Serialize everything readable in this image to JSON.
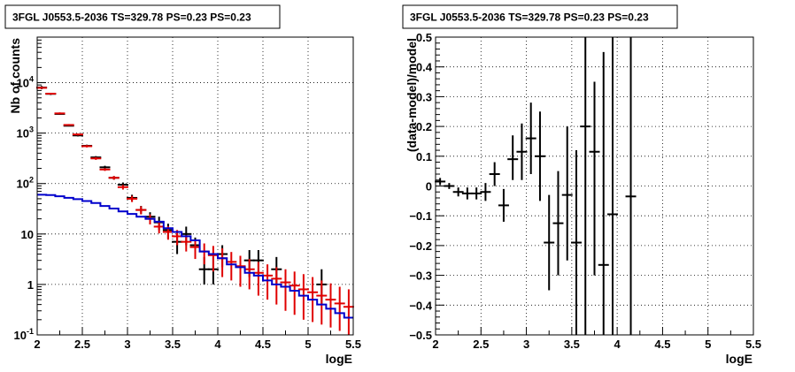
{
  "chart_data": [
    {
      "type": "scatter",
      "title": "3FGL J0553.5-2036 TS=329.78 PS=0.23 PS=0.23",
      "xlabel": "logE",
      "ylabel": "Nb of counts",
      "xlim": [
        2,
        5.5
      ],
      "ylim": [
        0.1,
        80000
      ],
      "yscale": "log",
      "grid": true,
      "x_ticks": [
        "2",
        "2.5",
        "3",
        "3.5",
        "4",
        "4.5",
        "5",
        "5.5"
      ],
      "y_ticks": [
        {
          "value": 0.1,
          "label": "10",
          "exp": "-1"
        },
        {
          "value": 1,
          "label": "1",
          "exp": ""
        },
        {
          "value": 10,
          "label": "10",
          "exp": ""
        },
        {
          "value": 100,
          "label": "10",
          "exp": "2"
        },
        {
          "value": 1000,
          "label": "10",
          "exp": "3"
        },
        {
          "value": 10000,
          "label": "10",
          "exp": "4"
        }
      ],
      "colors": {
        "data": "#000000",
        "model": "#e00000",
        "background": "#0000cc"
      },
      "series": [
        {
          "key": "data",
          "x": [
            2.05,
            2.15,
            2.25,
            2.35,
            2.45,
            2.55,
            2.65,
            2.75,
            2.85,
            2.95,
            3.05,
            3.15,
            3.25,
            3.35,
            3.45,
            3.55,
            3.65,
            3.75,
            3.85,
            3.95,
            4.05,
            4.35,
            4.45,
            4.65,
            5.15
          ],
          "y": [
            8000,
            6000,
            2400,
            1400,
            900,
            560,
            330,
            210,
            130,
            95,
            52,
            30,
            22,
            17,
            12,
            7,
            10,
            6,
            2,
            2,
            4,
            3,
            3,
            2,
            1
          ],
          "ylo": [
            7400,
            5700,
            2300,
            1360,
            860,
            530,
            310,
            195,
            120,
            85,
            45,
            25,
            17,
            12,
            8,
            4,
            6,
            3.5,
            1,
            1,
            2.2,
            1.4,
            1.4,
            1,
            0.4
          ],
          "yhi": [
            8600,
            6300,
            2500,
            1440,
            940,
            590,
            350,
            225,
            140,
            105,
            60,
            36,
            27,
            22,
            16,
            10,
            14,
            8.5,
            3.5,
            3.5,
            6,
            4.8,
            4.8,
            3.5,
            2
          ]
        },
        {
          "key": "model",
          "x": [
            2.05,
            2.15,
            2.25,
            2.35,
            2.45,
            2.55,
            2.65,
            2.75,
            2.85,
            2.95,
            3.05,
            3.15,
            3.25,
            3.35,
            3.45,
            3.55,
            3.65,
            3.75,
            3.85,
            3.95,
            4.05,
            4.15,
            4.25,
            4.35,
            4.45,
            4.55,
            4.65,
            4.75,
            4.85,
            4.95,
            5.05,
            5.15,
            5.25,
            5.35,
            5.45
          ],
          "y": [
            7900,
            6050,
            2460,
            1450,
            940,
            550,
            315,
            190,
            130,
            85,
            50,
            30,
            20,
            14,
            11,
            9,
            7,
            5.5,
            4.5,
            3.8,
            3.3,
            2.8,
            2.3,
            2,
            1.7,
            1.5,
            1.3,
            1.1,
            0.95,
            0.8,
            0.7,
            0.6,
            0.5,
            0.42,
            0.36
          ],
          "ylo": [
            7500,
            5800,
            2350,
            1390,
            900,
            520,
            295,
            178,
            119,
            76,
            43,
            24.5,
            15.5,
            10.3,
            7.7,
            6,
            4.5,
            3.2,
            2.5,
            1.8,
            1.4,
            1.2,
            0.9,
            0.8,
            0.6,
            0.5,
            0.4,
            0.3,
            0.25,
            0.2,
            0.18,
            0.16,
            0.14,
            0.12,
            0.1
          ],
          "yhi": [
            8300,
            6300,
            2570,
            1510,
            980,
            580,
            335,
            202,
            141,
            94,
            57,
            35.5,
            24.5,
            17.7,
            14.3,
            12,
            9.5,
            7.8,
            6.5,
            5.8,
            5.2,
            4.4,
            3.7,
            3.2,
            2.8,
            2.5,
            2.2,
            2,
            1.8,
            1.6,
            1.4,
            1.2,
            1.05,
            0.9,
            0.8
          ]
        },
        {
          "key": "background",
          "edges": [
            2.0,
            2.1,
            2.2,
            2.3,
            2.4,
            2.5,
            2.6,
            2.7,
            2.8,
            2.9,
            3.0,
            3.1,
            3.2,
            3.3,
            3.4,
            3.5,
            3.6,
            3.7,
            3.8,
            3.9,
            4.0,
            4.1,
            4.2,
            4.3,
            4.4,
            4.5,
            4.6,
            4.7,
            4.8,
            4.9,
            5.0,
            5.1,
            5.2,
            5.3,
            5.4,
            5.5
          ],
          "values": [
            60,
            59,
            56,
            52,
            49,
            45,
            41,
            36,
            32,
            28,
            25,
            22,
            20,
            17.5,
            13,
            11,
            9,
            7.5,
            4.5,
            4,
            3.3,
            2.5,
            2.2,
            1.7,
            1.5,
            1.2,
            1.0,
            0.9,
            0.75,
            0.6,
            0.5,
            0.4,
            0.33,
            0.27,
            0.22
          ]
        }
      ]
    },
    {
      "type": "scatter",
      "title": "3FGL J0553.5-2036 TS=329.78 PS=0.23 PS=0.23",
      "xlabel": "logE",
      "ylabel": "(data-model)/model",
      "xlim": [
        2,
        5.5
      ],
      "ylim": [
        -0.5,
        0.5
      ],
      "grid": true,
      "x_ticks": [
        "2",
        "2.5",
        "3",
        "3.5",
        "4",
        "4.5",
        "5",
        "5.5"
      ],
      "y_ticks": [
        "-0.5",
        "-0.4",
        "-0.3",
        "-0.2",
        "-0.1",
        "0",
        "0.1",
        "0.2",
        "0.3",
        "0.4",
        "0.5"
      ],
      "colors": {
        "data": "#000000"
      },
      "series": [
        {
          "key": "residual",
          "x": [
            2.05,
            2.15,
            2.25,
            2.35,
            2.45,
            2.55,
            2.65,
            2.75,
            2.85,
            2.95,
            3.05,
            3.15,
            3.25,
            3.35,
            3.45,
            3.55,
            3.65,
            3.75,
            3.85,
            3.95,
            4.15
          ],
          "y": [
            0.015,
            0.0,
            -0.02,
            -0.025,
            -0.025,
            -0.02,
            0.04,
            -0.065,
            0.09,
            0.115,
            0.16,
            0.1,
            -0.19,
            -0.125,
            -0.03,
            -0.19,
            0.2,
            0.115,
            -0.265,
            -0.095,
            -0.035
          ],
          "ylo": [
            0.003,
            -0.01,
            -0.035,
            -0.045,
            -0.045,
            -0.05,
            0.0,
            -0.12,
            0.02,
            0.02,
            0.04,
            -0.05,
            -0.35,
            -0.3,
            -0.25,
            -0.5,
            -0.5,
            -0.3,
            -0.5,
            -0.5,
            -0.5
          ],
          "yhi": [
            0.027,
            0.01,
            -0.005,
            -0.005,
            -0.005,
            0.01,
            0.08,
            -0.01,
            0.17,
            0.21,
            0.28,
            0.25,
            -0.03,
            0.05,
            0.2,
            0.12,
            0.5,
            0.35,
            0.45,
            0.5,
            0.5
          ]
        }
      ]
    }
  ]
}
